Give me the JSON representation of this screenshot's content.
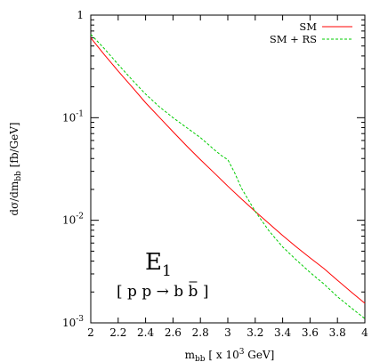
{
  "chart_data": {
    "type": "line",
    "xlabel": {
      "main": "m",
      "sub": "bb",
      "rest": " [ x 10",
      "sup": "3",
      "end": " GeV]"
    },
    "ylabel": {
      "main": "dσ/dm",
      "sub": "bb",
      "rest": " [fb/GeV]"
    },
    "xlim": [
      2,
      4
    ],
    "ylim": [
      0.001,
      1
    ],
    "y_scale": "log",
    "grid": false,
    "legend_position": "top-right",
    "x_ticks": [
      "2",
      "2.2",
      "2.4",
      "2.6",
      "2.8",
      "3",
      "3.2",
      "3.4",
      "3.6",
      "3.8",
      "4"
    ],
    "y_ticks": [
      {
        "value": 1,
        "base": "1",
        "exp": ""
      },
      {
        "value": 0.1,
        "base": "10",
        "exp": "-1"
      },
      {
        "value": 0.01,
        "base": "10",
        "exp": "-2"
      },
      {
        "value": 0.001,
        "base": "10",
        "exp": "-3"
      }
    ],
    "annotation": {
      "main": "E",
      "sub": "1",
      "process": "[ p p → b b ]",
      "bar_char": "b"
    },
    "series": [
      {
        "name": "SM",
        "color": "#ff0000",
        "dash": "solid",
        "x": [
          2.0,
          2.1,
          2.2,
          2.3,
          2.4,
          2.5,
          2.6,
          2.7,
          2.8,
          2.9,
          3.0,
          3.1,
          3.2,
          3.3,
          3.4,
          3.5,
          3.6,
          3.7,
          3.8,
          3.9,
          4.0
        ],
        "y": [
          0.6,
          0.41,
          0.285,
          0.2,
          0.14,
          0.101,
          0.073,
          0.053,
          0.039,
          0.029,
          0.0215,
          0.0161,
          0.0122,
          0.0093,
          0.0071,
          0.0055,
          0.0043,
          0.0034,
          0.0026,
          0.002,
          0.00155
        ]
      },
      {
        "name": "SM + RS",
        "color": "#00cc00",
        "dash": "dashed",
        "x": [
          2.0,
          2.1,
          2.2,
          2.3,
          2.4,
          2.5,
          2.6,
          2.7,
          2.8,
          2.9,
          2.95,
          3.0,
          3.05,
          3.1,
          3.2,
          3.3,
          3.4,
          3.5,
          3.6,
          3.7,
          3.8,
          3.9,
          4.0
        ],
        "y": [
          0.65,
          0.47,
          0.33,
          0.235,
          0.17,
          0.128,
          0.1,
          0.08,
          0.064,
          0.049,
          0.043,
          0.039,
          0.029,
          0.0205,
          0.0122,
          0.0079,
          0.0055,
          0.0041,
          0.0031,
          0.0024,
          0.0018,
          0.0014,
          0.0011
        ]
      }
    ]
  }
}
